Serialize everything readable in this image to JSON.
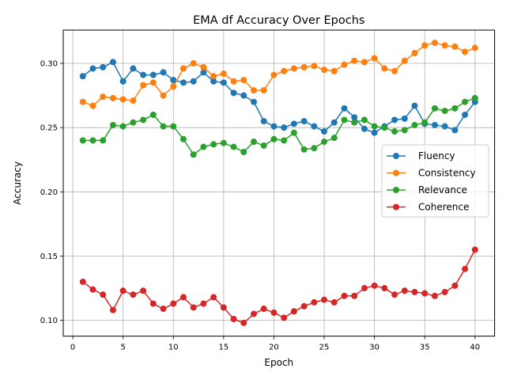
{
  "chart_data": {
    "type": "line",
    "title": "EMA df Accuracy Over Epochs",
    "xlabel": "Epoch",
    "ylabel": "Accuracy",
    "xlim": [
      -0.95,
      41.95
    ],
    "ylim": [
      0.0877,
      0.3259
    ],
    "xticks": [
      0,
      5,
      10,
      15,
      20,
      25,
      30,
      35,
      40
    ],
    "xtick_labels": [
      "0",
      "5",
      "10",
      "15",
      "20",
      "25",
      "30",
      "35",
      "40"
    ],
    "yticks": [
      0.1,
      0.15,
      0.2,
      0.25,
      0.3
    ],
    "ytick_labels": [
      "0.10",
      "0.15",
      "0.20",
      "0.25",
      "0.30"
    ],
    "grid": true,
    "legend_position": "center-right",
    "x": [
      1,
      2,
      3,
      4,
      5,
      6,
      7,
      8,
      9,
      10,
      11,
      12,
      13,
      14,
      15,
      16,
      17,
      18,
      19,
      20,
      21,
      22,
      23,
      24,
      25,
      26,
      27,
      28,
      29,
      30,
      31,
      32,
      33,
      34,
      35,
      36,
      37,
      38,
      39,
      40
    ],
    "series": [
      {
        "name": "Fluency",
        "color": "#1f77b4",
        "values": [
          0.29,
          0.296,
          0.297,
          0.301,
          0.286,
          0.296,
          0.291,
          0.291,
          0.293,
          0.287,
          0.285,
          0.286,
          0.293,
          0.286,
          0.285,
          0.277,
          0.275,
          0.27,
          0.255,
          0.251,
          0.25,
          0.253,
          0.255,
          0.251,
          0.247,
          0.254,
          0.265,
          0.258,
          0.249,
          0.246,
          0.251,
          0.256,
          0.257,
          0.267,
          0.253,
          0.252,
          0.251,
          0.248,
          0.26,
          0.27
        ]
      },
      {
        "name": "Consistency",
        "color": "#ff7f0e",
        "values": [
          0.27,
          0.267,
          0.274,
          0.273,
          0.272,
          0.271,
          0.283,
          0.285,
          0.275,
          0.282,
          0.296,
          0.3,
          0.297,
          0.29,
          0.292,
          0.286,
          0.287,
          0.279,
          0.279,
          0.291,
          0.294,
          0.296,
          0.297,
          0.298,
          0.295,
          0.294,
          0.299,
          0.302,
          0.301,
          0.304,
          0.296,
          0.294,
          0.302,
          0.308,
          0.314,
          0.316,
          0.314,
          0.313,
          0.309,
          0.312
        ]
      },
      {
        "name": "Relevance",
        "color": "#2ca02c",
        "values": [
          0.24,
          0.24,
          0.24,
          0.252,
          0.251,
          0.254,
          0.256,
          0.26,
          0.251,
          0.251,
          0.241,
          0.229,
          0.235,
          0.237,
          0.238,
          0.235,
          0.231,
          0.239,
          0.236,
          0.241,
          0.24,
          0.246,
          0.233,
          0.234,
          0.239,
          0.242,
          0.256,
          0.254,
          0.256,
          0.251,
          0.25,
          0.247,
          0.248,
          0.252,
          0.254,
          0.265,
          0.263,
          0.265,
          0.27,
          0.273
        ]
      },
      {
        "name": "Coherence",
        "color": "#d62728",
        "values": [
          0.13,
          0.124,
          0.12,
          0.108,
          0.123,
          0.12,
          0.123,
          0.113,
          0.109,
          0.113,
          0.118,
          0.11,
          0.113,
          0.118,
          0.11,
          0.101,
          0.098,
          0.105,
          0.109,
          0.106,
          0.102,
          0.107,
          0.111,
          0.114,
          0.116,
          0.114,
          0.119,
          0.119,
          0.125,
          0.127,
          0.125,
          0.12,
          0.123,
          0.122,
          0.121,
          0.119,
          0.122,
          0.127,
          0.14,
          0.155
        ]
      }
    ]
  }
}
